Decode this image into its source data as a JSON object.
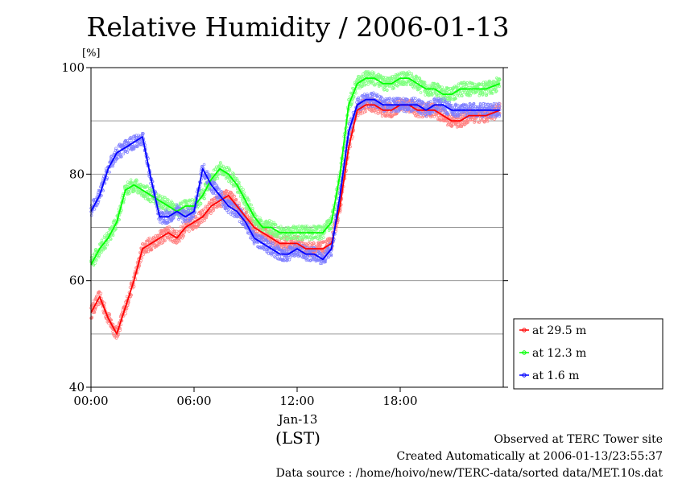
{
  "chart_data": {
    "type": "line",
    "title": "Relative Humidity / 2006-01-13",
    "ylabel": "[%]",
    "ylim": [
      40,
      100
    ],
    "yticks": [
      "40",
      "60",
      "80",
      "100"
    ],
    "gridlines": [
      50,
      60,
      70,
      80,
      90
    ],
    "xlim": [
      0,
      24
    ],
    "xticks": [
      {
        "value": 0,
        "label": "00:00"
      },
      {
        "value": 6,
        "label": "06:00"
      },
      {
        "value": 12,
        "label": "12:00"
      },
      {
        "value": 18,
        "label": "18:00"
      }
    ],
    "date_label": "Jan-13",
    "xlabel": "(LST)",
    "grid": true,
    "legend_position": "right, below plot",
    "x": [
      0.0,
      0.5,
      1.0,
      1.5,
      2.0,
      2.5,
      3.0,
      3.5,
      4.0,
      4.5,
      5.0,
      5.5,
      6.0,
      6.5,
      7.0,
      7.5,
      8.0,
      8.5,
      9.0,
      9.5,
      10.0,
      10.5,
      11.0,
      11.5,
      12.0,
      12.5,
      13.0,
      13.5,
      14.0,
      14.5,
      15.0,
      15.5,
      16.0,
      16.5,
      17.0,
      17.5,
      18.0,
      18.5,
      19.0,
      19.5,
      20.0,
      20.5,
      21.0,
      21.5,
      22.0,
      22.5,
      23.0,
      23.8
    ],
    "series": [
      {
        "name": "at 29.5 m",
        "color": "#ff0000",
        "band_color": "#ff8080",
        "values": [
          54,
          57,
          53,
          50,
          55,
          60,
          66,
          67,
          68,
          69,
          68,
          70,
          71,
          72,
          74,
          75,
          76,
          74,
          72,
          70,
          69,
          68,
          67,
          67,
          67,
          66,
          66,
          66,
          67,
          74,
          85,
          92,
          93,
          93,
          92,
          92,
          93,
          93,
          92,
          92,
          92,
          91,
          90,
          90,
          91,
          91,
          91,
          92
        ]
      },
      {
        "name": "at 12.3 m",
        "color": "#00ff00",
        "band_color": "#80ff80",
        "values": [
          63,
          66,
          68,
          71,
          77,
          78,
          77,
          76,
          75,
          74,
          73,
          74,
          74,
          76,
          79,
          81,
          80,
          78,
          75,
          72,
          70,
          70,
          69,
          69,
          69,
          69,
          69,
          69,
          71,
          80,
          93,
          97,
          98,
          98,
          97,
          97,
          98,
          98,
          97,
          96,
          96,
          95,
          95,
          96,
          96,
          96,
          96,
          97
        ]
      },
      {
        "name": "at 1.6 m",
        "color": "#0000ff",
        "band_color": "#8080ff",
        "values": [
          73,
          76,
          81,
          84,
          85,
          86,
          87,
          79,
          72,
          72,
          73,
          72,
          73,
          81,
          78,
          76,
          74,
          73,
          71,
          68,
          67,
          66,
          65,
          65,
          66,
          65,
          65,
          64,
          66,
          76,
          88,
          93,
          94,
          94,
          93,
          93,
          93,
          93,
          93,
          92,
          93,
          93,
          92,
          92,
          92,
          92,
          92,
          92
        ]
      }
    ]
  },
  "footer": {
    "line1": "Observed at TERC Tower site",
    "line2": "Created Automatically at 2006-01-13/23:55:37",
    "line3": "Data source : /home/hoivo/new/TERC-data/sorted  data/MET.10s.dat"
  }
}
